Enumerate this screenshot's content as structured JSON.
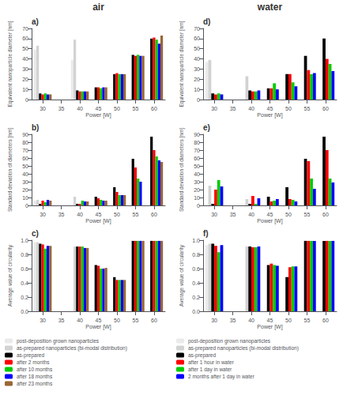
{
  "chart_data": [
    {
      "type": "bar",
      "title": "a)",
      "annotations": [
        "air"
      ],
      "xlabel": "Power [W]",
      "ylabel": "Equivalent nanoparticle diameter [nm]",
      "x": [
        30,
        35,
        40,
        45,
        50,
        55,
        60
      ],
      "xlim": [
        27,
        63
      ],
      "xticks": [
        30,
        35,
        40,
        45,
        50,
        55,
        60
      ],
      "ylim": [
        0,
        70
      ],
      "yticks": [
        0,
        10,
        20,
        30,
        40,
        50,
        60,
        70
      ],
      "grid": false,
      "series": [
        {
          "name": "post-deposition grown nanoparticles",
          "color": "#c8c8c8",
          "values": [
            49,
            0,
            39,
            0,
            0,
            0,
            0
          ]
        },
        {
          "name": "as-prepared nanoparticles (bi-modal distribution)",
          "color": "#888888",
          "values": [
            53,
            0,
            59,
            0,
            0,
            0,
            0
          ]
        },
        {
          "name": "as-prepared",
          "color": "#000000",
          "values": [
            6,
            0,
            9,
            12,
            25,
            44,
            60
          ]
        },
        {
          "name": "after 2 months",
          "color": "#ff0000",
          "values": [
            5,
            0,
            8,
            12,
            26,
            43,
            61
          ]
        },
        {
          "name": "after 10 months",
          "color": "#00cc00",
          "values": [
            6,
            0,
            8,
            11,
            25,
            44,
            59
          ]
        },
        {
          "name": "after 18 months",
          "color": "#0000ff",
          "values": [
            5,
            0,
            8,
            12,
            25,
            43,
            55
          ]
        },
        {
          "name": "after 23 months",
          "color": "#996633",
          "values": [
            5,
            0,
            8,
            12,
            25,
            43,
            63
          ]
        }
      ]
    },
    {
      "type": "bar",
      "title": "d)",
      "annotations": [
        "water"
      ],
      "xlabel": "Power [W]",
      "ylabel": "Equivalent nanoparticle diameter [nm]",
      "x": [
        30,
        35,
        40,
        45,
        50,
        55,
        60
      ],
      "xlim": [
        27,
        63
      ],
      "xticks": [
        30,
        35,
        40,
        45,
        50,
        55,
        60
      ],
      "ylim": [
        0,
        70
      ],
      "yticks": [
        0,
        10,
        20,
        30,
        40,
        50,
        60,
        70
      ],
      "grid": false,
      "series": [
        {
          "name": "post-deposition grown nanoparticles",
          "color": "#c8c8c8",
          "values": [
            37,
            0,
            0,
            0,
            0,
            0,
            0
          ]
        },
        {
          "name": "as-prepared nanoparticles (bi-modal distribution)",
          "color": "#888888",
          "values": [
            39,
            0,
            23,
            0,
            0,
            0,
            0
          ]
        },
        {
          "name": "as-prepared",
          "color": "#000000",
          "values": [
            6,
            0,
            9,
            11,
            25,
            43,
            60
          ]
        },
        {
          "name": "after 1 hour in water",
          "color": "#ff0000",
          "values": [
            5,
            0,
            8,
            11,
            25,
            29,
            40
          ]
        },
        {
          "name": "after 1 day in water",
          "color": "#00cc00",
          "values": [
            6,
            0,
            8,
            16,
            17,
            25,
            35
          ]
        },
        {
          "name": "2 months after 1 day in water",
          "color": "#0000ff",
          "values": [
            5,
            0,
            9,
            10,
            13,
            26,
            28
          ]
        }
      ]
    },
    {
      "type": "bar",
      "title": "b)",
      "legend": "bottom",
      "xlabel": "Power [W]",
      "ylabel": "Standard deviation of diameters [nm]",
      "x": [
        30,
        35,
        40,
        45,
        50,
        55,
        60
      ],
      "xlim": [
        27,
        63
      ],
      "xticks": [
        30,
        35,
        40,
        45,
        50,
        55,
        60
      ],
      "ylim": [
        0,
        90
      ],
      "yticks": [
        0,
        10,
        20,
        30,
        40,
        50,
        60,
        70,
        80,
        90
      ],
      "grid": false,
      "series": [
        {
          "name": "post-deposition grown nanoparticles",
          "color": "#c8c8c8",
          "values": [
            6,
            0,
            0,
            0,
            0,
            0,
            0
          ]
        },
        {
          "name": "as-prepared nanoparticles (bi-modal distribution)",
          "color": "#888888",
          "values": [
            7,
            0,
            11,
            0,
            0,
            0,
            0
          ]
        },
        {
          "name": "as-prepared",
          "color": "#000000",
          "values": [
            2,
            0,
            2,
            11,
            23,
            59,
            87
          ]
        },
        {
          "name": "after 2 months",
          "color": "#ff0000",
          "values": [
            6,
            0,
            2,
            9,
            17,
            48,
            70
          ]
        },
        {
          "name": "after 10 months",
          "color": "#00cc00",
          "values": [
            4,
            0,
            6,
            7,
            13,
            34,
            62
          ]
        },
        {
          "name": "after 18 months",
          "color": "#0000ff",
          "values": [
            7,
            0,
            5,
            6,
            13,
            30,
            57
          ]
        },
        {
          "name": "after 23 months",
          "color": "#996633",
          "values": [
            6,
            0,
            5,
            6,
            13,
            0,
            55
          ]
        }
      ]
    },
    {
      "type": "bar",
      "title": "e)",
      "legend": "bottom",
      "xlabel": "Power [W]",
      "ylabel": "Standard deviation of diameters [nm]",
      "x": [
        30,
        35,
        40,
        45,
        50,
        55,
        60
      ],
      "xlim": [
        27,
        63
      ],
      "xticks": [
        30,
        35,
        40,
        45,
        50,
        55,
        60
      ],
      "ylim": [
        0,
        90
      ],
      "yticks": [
        0,
        10,
        20,
        30,
        40,
        50,
        60,
        70,
        80,
        90
      ],
      "grid": false,
      "series": [
        {
          "name": "post-deposition grown nanoparticles",
          "color": "#c8c8c8",
          "values": [
            0,
            0,
            0,
            0,
            0,
            0,
            0
          ]
        },
        {
          "name": "as-prepared nanoparticles (bi-modal distribution)",
          "color": "#888888",
          "values": [
            25,
            0,
            8,
            0,
            0,
            0,
            0
          ]
        },
        {
          "name": "as-prepared",
          "color": "#000000",
          "values": [
            2,
            0,
            2,
            11,
            23,
            59,
            87
          ]
        },
        {
          "name": "after 1 hour in water",
          "color": "#ff0000",
          "values": [
            20,
            0,
            12,
            5,
            8,
            56,
            70
          ]
        },
        {
          "name": "after 1 day in water",
          "color": "#00cc00",
          "values": [
            32,
            0,
            2,
            6,
            7,
            34,
            34
          ]
        },
        {
          "name": "2 months after 1 day in water",
          "color": "#0000ff",
          "values": [
            24,
            0,
            9,
            8,
            5,
            21,
            29
          ]
        }
      ]
    },
    {
      "type": "bar",
      "title": "c)",
      "xlabel": "Power [W]",
      "ylabel": "Average value of circularity",
      "x": [
        30,
        35,
        40,
        45,
        50,
        55,
        60
      ],
      "xlim": [
        27,
        63
      ],
      "xticks": [
        30,
        35,
        40,
        45,
        50,
        55,
        60
      ],
      "ylim": [
        0,
        1.0
      ],
      "yticks": [
        {
          "value": 0,
          "label": "0.0"
        },
        0.2,
        0.4,
        0.6,
        0.8,
        {
          "value": 1.0,
          "label": "1.0"
        }
      ],
      "grid": false,
      "series": [
        {
          "name": "post-deposition grown nanoparticles",
          "color": "#c8c8c8",
          "values": [
            0.97,
            0,
            0,
            0,
            0,
            0,
            0
          ]
        },
        {
          "name": "as-prepared nanoparticles (bi-modal distribution)",
          "color": "#888888",
          "values": [
            0.97,
            0,
            0.91,
            0,
            0,
            0,
            0
          ]
        },
        {
          "name": "as-prepared",
          "color": "#000000",
          "values": [
            0.95,
            0,
            0.91,
            0.65,
            0.48,
            0.99,
            0.99
          ]
        },
        {
          "name": "after 2 months",
          "color": "#ff0000",
          "values": [
            0.94,
            0,
            0.91,
            0.64,
            0.44,
            0.99,
            0.99
          ]
        },
        {
          "name": "after 10 months",
          "color": "#00cc00",
          "values": [
            0.88,
            0,
            0.91,
            0.6,
            0.44,
            0.99,
            0.99
          ]
        },
        {
          "name": "after 18 months",
          "color": "#0000ff",
          "values": [
            0.92,
            0,
            0.89,
            0.6,
            0.44,
            0.99,
            0.99
          ]
        },
        {
          "name": "after 23 months",
          "color": "#996633",
          "values": [
            0.92,
            0,
            0.89,
            0.61,
            0.44,
            0.99,
            0.99
          ]
        }
      ]
    },
    {
      "type": "bar",
      "title": "f)",
      "xlabel": "Power [W]",
      "ylabel": "Average value of circularity",
      "x": [
        30,
        35,
        40,
        45,
        50,
        55,
        60
      ],
      "xlim": [
        27,
        63
      ],
      "xticks": [
        30,
        35,
        40,
        45,
        50,
        55,
        60
      ],
      "ylim": [
        0,
        1.0
      ],
      "yticks": [
        {
          "value": 0,
          "label": "0.0"
        },
        0.2,
        0.4,
        0.6,
        0.8,
        {
          "value": 1.0,
          "label": "1.0"
        }
      ],
      "grid": false,
      "series": [
        {
          "name": "post-deposition grown nanoparticles",
          "color": "#c8c8c8",
          "values": [
            0.93,
            0,
            0,
            0,
            0,
            0,
            0
          ]
        },
        {
          "name": "as-prepared nanoparticles (bi-modal distribution)",
          "color": "#888888",
          "values": [
            0.95,
            0,
            0.91,
            0,
            0,
            0,
            0
          ]
        },
        {
          "name": "as-prepared",
          "color": "#000000",
          "values": [
            0.95,
            0,
            0.91,
            0.65,
            0.48,
            0.99,
            0.99
          ]
        },
        {
          "name": "after 1 hour in water",
          "color": "#ff0000",
          "values": [
            0.92,
            0,
            0.9,
            0.67,
            0.62,
            0.99,
            0.99
          ]
        },
        {
          "name": "after 1 day in water",
          "color": "#00cc00",
          "values": [
            0.83,
            0,
            0.9,
            0.65,
            0.63,
            0.99,
            0.99
          ]
        },
        {
          "name": "2 months after 1 day in water",
          "color": "#0000ff",
          "values": [
            0.93,
            0,
            0.91,
            0.64,
            0.63,
            0.99,
            0.99
          ]
        }
      ]
    }
  ]
}
